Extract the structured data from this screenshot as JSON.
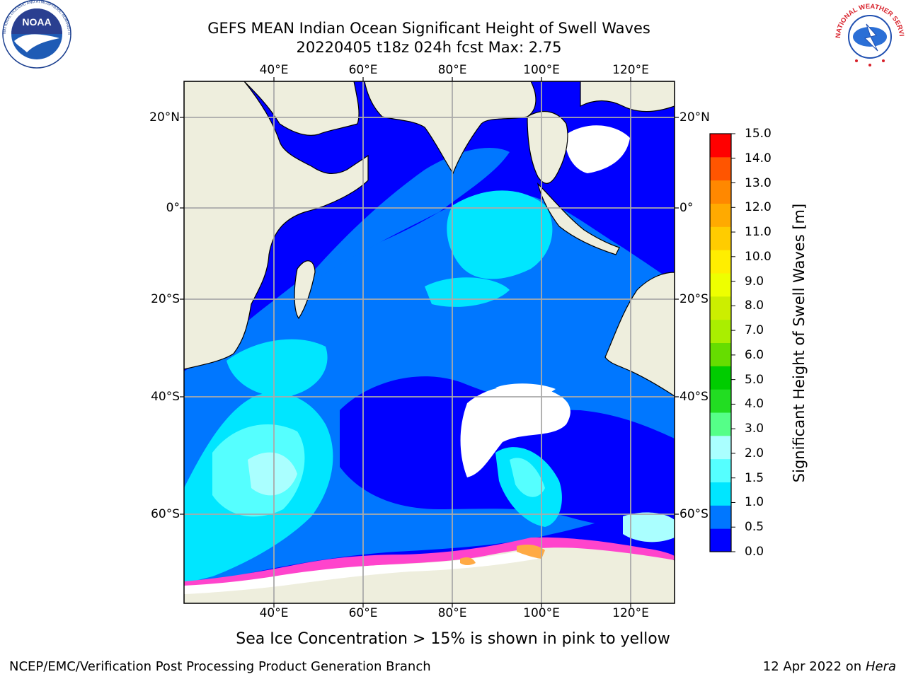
{
  "header": {
    "title_line1": "GEFS MEAN Indian Ocean Significant Height of Swell Waves",
    "title_line2": "20220405 t18z 024h fcst   Max: 2.75"
  },
  "logos": {
    "noaa_text": "NOAA",
    "noaa_ring": "NATIONAL OCEANIC AND ATMOSPHERIC ADMINISTRATION · U.S. DEPARTMENT OF COMMERCE",
    "nws_ring": "NATIONAL WEATHER SERVICE"
  },
  "map": {
    "lon_ticks": [
      "40°E",
      "60°E",
      "80°E",
      "100°E",
      "120°E"
    ],
    "lat_ticks_left": [
      "20°N",
      "0°",
      "20°S",
      "40°S",
      "60°S"
    ],
    "lat_ticks_right": [
      "20°N",
      "0°",
      "20°S",
      "40°S",
      "60°S"
    ],
    "colors": {
      "ocean_deep": "#0000ff",
      "ocean_mid": "#0077ff",
      "ocean_cyan": "#00e6ff",
      "ocean_light": "#55ffff",
      "ocean_pale": "#aaffff",
      "land": "#eeeedd",
      "ice_pink": "#ff44cc",
      "ice_orange": "#ffaa44",
      "grid": "#aaaaaa"
    }
  },
  "colorbar": {
    "label": "Significant Height of Swell Waves [m]",
    "ticks": [
      "15.0",
      "14.0",
      "13.0",
      "12.0",
      "11.0",
      "10.0",
      "9.0",
      "8.0",
      "7.0",
      "6.0",
      "5.0",
      "4.0",
      "3.0",
      "2.0",
      "1.5",
      "1.0",
      "0.5",
      "0.0"
    ],
    "colors": [
      "#0000ff",
      "#0077ff",
      "#00e6ff",
      "#55ffff",
      "#aaffff",
      "#55ff88",
      "#22dd22",
      "#00cc00",
      "#66dd00",
      "#aaee00",
      "#ccee00",
      "#eeff00",
      "#ffee00",
      "#ffcc00",
      "#ffaa00",
      "#ff8800",
      "#ff5500",
      "#ff0000"
    ]
  },
  "notes": {
    "sea_ice": "Sea Ice Concentration > 15% is shown in pink to yellow"
  },
  "footer": {
    "left": "NCEP/EMC/Verification Post Processing Product Generation Branch",
    "right_prefix": "12 Apr 2022 on ",
    "right_host": "Hera"
  }
}
